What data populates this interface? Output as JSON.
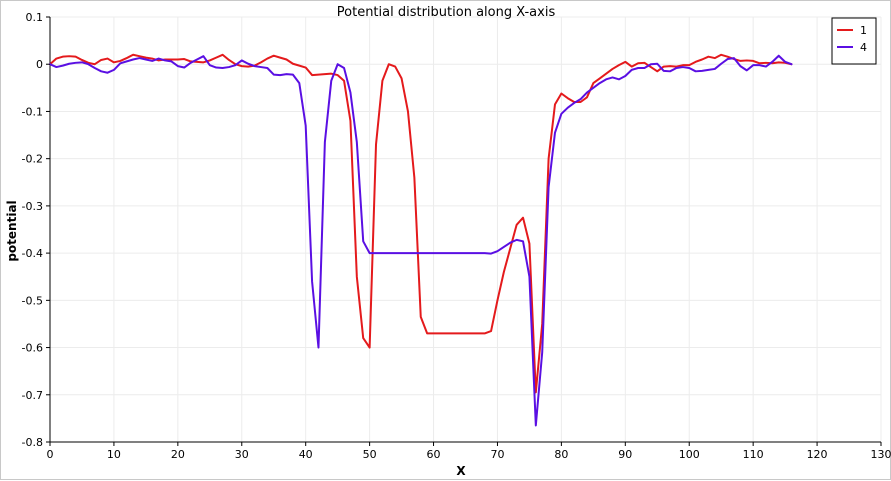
{
  "chart_data": {
    "type": "line",
    "title": "Potential distribution along X-axis",
    "xlabel": "X",
    "ylabel": "potential",
    "xlim": [
      0,
      130
    ],
    "ylim": [
      -0.8,
      0.1
    ],
    "xticks": [
      0,
      10,
      20,
      30,
      40,
      50,
      60,
      70,
      80,
      90,
      100,
      110,
      120,
      130
    ],
    "yticks": [
      0.1,
      0,
      -0.1,
      -0.2,
      -0.3,
      -0.4,
      -0.5,
      -0.6,
      -0.7,
      -0.8
    ],
    "grid": true,
    "legend": {
      "position": "top-right"
    },
    "series": [
      {
        "name": "1",
        "color": "#e41a1c",
        "points": [
          [
            0,
            0.0
          ],
          [
            1,
            0.012
          ],
          [
            2,
            0.016
          ],
          [
            3,
            0.017
          ],
          [
            4,
            0.016
          ],
          [
            5,
            0.009
          ],
          [
            6,
            0.003
          ],
          [
            7,
            0.0
          ],
          [
            8,
            0.009
          ],
          [
            9,
            0.012
          ],
          [
            10,
            0.004
          ],
          [
            11,
            0.007
          ],
          [
            12,
            0.013
          ],
          [
            13,
            0.02
          ],
          [
            14,
            0.017
          ],
          [
            15,
            0.014
          ],
          [
            16,
            0.012
          ],
          [
            17,
            0.008
          ],
          [
            18,
            0.01
          ],
          [
            19,
            0.01
          ],
          [
            20,
            0.01
          ],
          [
            21,
            0.011
          ],
          [
            22,
            0.006
          ],
          [
            23,
            0.005
          ],
          [
            24,
            0.004
          ],
          [
            25,
            0.008
          ],
          [
            26,
            0.014
          ],
          [
            27,
            0.02
          ],
          [
            28,
            0.009
          ],
          [
            29,
            0.0
          ],
          [
            30,
            -0.004
          ],
          [
            31,
            -0.005
          ],
          [
            32,
            -0.003
          ],
          [
            33,
            0.004
          ],
          [
            34,
            0.012
          ],
          [
            35,
            0.018
          ],
          [
            36,
            0.014
          ],
          [
            37,
            0.01
          ],
          [
            38,
            0.001
          ],
          [
            39,
            -0.003
          ],
          [
            40,
            -0.007
          ],
          [
            41,
            -0.023
          ],
          [
            42,
            -0.022
          ],
          [
            43,
            -0.021
          ],
          [
            44,
            -0.02
          ],
          [
            45,
            -0.023
          ],
          [
            46,
            -0.035
          ],
          [
            47,
            -0.12
          ],
          [
            48,
            -0.45
          ],
          [
            49,
            -0.58
          ],
          [
            50,
            -0.6
          ],
          [
            51,
            -0.17
          ],
          [
            52,
            -0.035
          ],
          [
            53,
            0.0
          ],
          [
            54,
            -0.005
          ],
          [
            55,
            -0.03
          ],
          [
            56,
            -0.1
          ],
          [
            57,
            -0.24
          ],
          [
            58,
            -0.535
          ],
          [
            59,
            -0.57
          ],
          [
            60,
            -0.57
          ],
          [
            61,
            -0.57
          ],
          [
            62,
            -0.57
          ],
          [
            63,
            -0.57
          ],
          [
            64,
            -0.57
          ],
          [
            65,
            -0.57
          ],
          [
            66,
            -0.57
          ],
          [
            67,
            -0.57
          ],
          [
            68,
            -0.57
          ],
          [
            69,
            -0.565
          ],
          [
            70,
            -0.5
          ],
          [
            71,
            -0.44
          ],
          [
            72,
            -0.39
          ],
          [
            73,
            -0.34
          ],
          [
            74,
            -0.325
          ],
          [
            75,
            -0.38
          ],
          [
            76,
            -0.695
          ],
          [
            77,
            -0.55
          ],
          [
            78,
            -0.2
          ],
          [
            79,
            -0.085
          ],
          [
            80,
            -0.062
          ],
          [
            81,
            -0.072
          ],
          [
            82,
            -0.08
          ],
          [
            83,
            -0.08
          ],
          [
            84,
            -0.07
          ],
          [
            85,
            -0.04
          ],
          [
            86,
            -0.03
          ],
          [
            87,
            -0.02
          ],
          [
            88,
            -0.01
          ],
          [
            89,
            -0.002
          ],
          [
            90,
            0.005
          ],
          [
            91,
            -0.005
          ],
          [
            92,
            0.002
          ],
          [
            93,
            0.003
          ],
          [
            94,
            -0.006
          ],
          [
            95,
            -0.015
          ],
          [
            96,
            -0.005
          ],
          [
            97,
            -0.004
          ],
          [
            98,
            -0.005
          ],
          [
            99,
            -0.002
          ],
          [
            100,
            -0.002
          ],
          [
            101,
            0.005
          ],
          [
            102,
            0.01
          ],
          [
            103,
            0.016
          ],
          [
            104,
            0.013
          ],
          [
            105,
            0.02
          ],
          [
            106,
            0.016
          ],
          [
            107,
            0.011
          ],
          [
            108,
            0.007
          ],
          [
            109,
            0.008
          ],
          [
            110,
            0.007
          ],
          [
            111,
            0.002
          ],
          [
            112,
            0.003
          ],
          [
            113,
            0.002
          ],
          [
            114,
            0.004
          ],
          [
            115,
            0.003
          ],
          [
            116,
            0.0
          ]
        ]
      },
      {
        "name": "4",
        "color": "#5a0fe3",
        "points": [
          [
            0,
            0.0
          ],
          [
            1,
            -0.006
          ],
          [
            2,
            -0.003
          ],
          [
            3,
            0.001
          ],
          [
            4,
            0.003
          ],
          [
            5,
            0.004
          ],
          [
            6,
            0.0
          ],
          [
            7,
            -0.008
          ],
          [
            8,
            -0.015
          ],
          [
            9,
            -0.018
          ],
          [
            10,
            -0.012
          ],
          [
            11,
            0.002
          ],
          [
            12,
            0.006
          ],
          [
            13,
            0.01
          ],
          [
            14,
            0.013
          ],
          [
            15,
            0.01
          ],
          [
            16,
            0.007
          ],
          [
            17,
            0.012
          ],
          [
            18,
            0.008
          ],
          [
            19,
            0.006
          ],
          [
            20,
            -0.004
          ],
          [
            21,
            -0.007
          ],
          [
            22,
            0.003
          ],
          [
            23,
            0.01
          ],
          [
            24,
            0.017
          ],
          [
            25,
            -0.002
          ],
          [
            26,
            -0.007
          ],
          [
            27,
            -0.008
          ],
          [
            28,
            -0.006
          ],
          [
            29,
            -0.002
          ],
          [
            30,
            0.008
          ],
          [
            31,
            0.001
          ],
          [
            32,
            -0.004
          ],
          [
            33,
            -0.006
          ],
          [
            34,
            -0.008
          ],
          [
            35,
            -0.022
          ],
          [
            36,
            -0.023
          ],
          [
            37,
            -0.021
          ],
          [
            38,
            -0.022
          ],
          [
            39,
            -0.04
          ],
          [
            40,
            -0.13
          ],
          [
            41,
            -0.46
          ],
          [
            42,
            -0.6
          ],
          [
            43,
            -0.165
          ],
          [
            44,
            -0.035
          ],
          [
            45,
            0.0
          ],
          [
            46,
            -0.008
          ],
          [
            47,
            -0.06
          ],
          [
            48,
            -0.165
          ],
          [
            49,
            -0.375
          ],
          [
            50,
            -0.4
          ],
          [
            51,
            -0.4
          ],
          [
            52,
            -0.4
          ],
          [
            53,
            -0.4
          ],
          [
            54,
            -0.4
          ],
          [
            55,
            -0.4
          ],
          [
            56,
            -0.4
          ],
          [
            57,
            -0.4
          ],
          [
            58,
            -0.4
          ],
          [
            59,
            -0.4
          ],
          [
            60,
            -0.4
          ],
          [
            61,
            -0.4
          ],
          [
            62,
            -0.4
          ],
          [
            63,
            -0.4
          ],
          [
            64,
            -0.4
          ],
          [
            65,
            -0.4
          ],
          [
            66,
            -0.4
          ],
          [
            67,
            -0.4
          ],
          [
            68,
            -0.4
          ],
          [
            69,
            -0.401
          ],
          [
            70,
            -0.396
          ],
          [
            71,
            -0.387
          ],
          [
            72,
            -0.378
          ],
          [
            73,
            -0.372
          ],
          [
            74,
            -0.375
          ],
          [
            75,
            -0.45
          ],
          [
            76,
            -0.765
          ],
          [
            77,
            -0.61
          ],
          [
            78,
            -0.26
          ],
          [
            79,
            -0.145
          ],
          [
            80,
            -0.105
          ],
          [
            81,
            -0.092
          ],
          [
            82,
            -0.082
          ],
          [
            83,
            -0.074
          ],
          [
            84,
            -0.06
          ],
          [
            85,
            -0.05
          ],
          [
            86,
            -0.04
          ],
          [
            87,
            -0.032
          ],
          [
            88,
            -0.028
          ],
          [
            89,
            -0.032
          ],
          [
            90,
            -0.025
          ],
          [
            91,
            -0.012
          ],
          [
            92,
            -0.008
          ],
          [
            93,
            -0.008
          ],
          [
            94,
            0.0
          ],
          [
            95,
            0.001
          ],
          [
            96,
            -0.014
          ],
          [
            97,
            -0.015
          ],
          [
            98,
            -0.008
          ],
          [
            99,
            -0.006
          ],
          [
            100,
            -0.008
          ],
          [
            101,
            -0.015
          ],
          [
            102,
            -0.014
          ],
          [
            103,
            -0.012
          ],
          [
            104,
            -0.01
          ],
          [
            105,
            0.001
          ],
          [
            106,
            0.011
          ],
          [
            107,
            0.013
          ],
          [
            108,
            -0.004
          ],
          [
            109,
            -0.013
          ],
          [
            110,
            -0.002
          ],
          [
            111,
            -0.002
          ],
          [
            112,
            -0.005
          ],
          [
            113,
            0.005
          ],
          [
            114,
            0.018
          ],
          [
            115,
            0.005
          ],
          [
            116,
            0.0
          ]
        ]
      }
    ]
  }
}
